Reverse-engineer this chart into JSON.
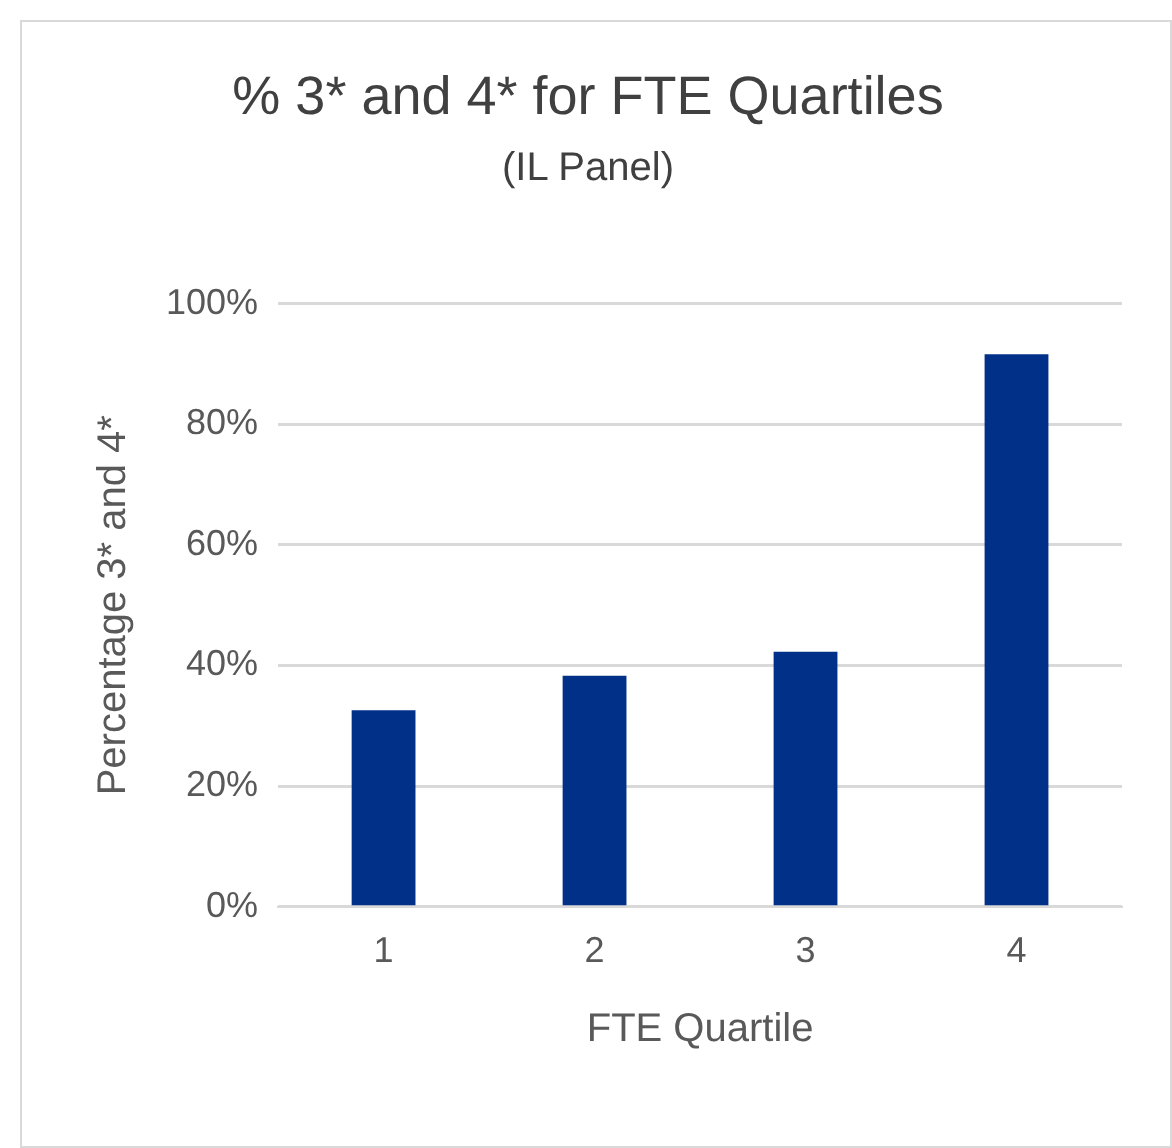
{
  "chart_data": {
    "type": "bar",
    "title": "% 3* and 4* for FTE Quartiles",
    "subtitle": "(IL Panel)",
    "xlabel": "FTE Quartile",
    "ylabel": "Percentage 3* and 4*",
    "categories": [
      "1",
      "2",
      "3",
      "4"
    ],
    "values": [
      32.6,
      38.3,
      42.3,
      91.6
    ],
    "color": "#003087",
    "ylim": [
      0,
      100
    ],
    "yticks": [
      {
        "value": 0,
        "label": "0%"
      },
      {
        "value": 20,
        "label": "20%"
      },
      {
        "value": 40,
        "label": "40%"
      },
      {
        "value": 60,
        "label": "60%"
      },
      {
        "value": 80,
        "label": "80%"
      },
      {
        "value": 100,
        "label": "100%"
      }
    ],
    "grid": "y"
  }
}
